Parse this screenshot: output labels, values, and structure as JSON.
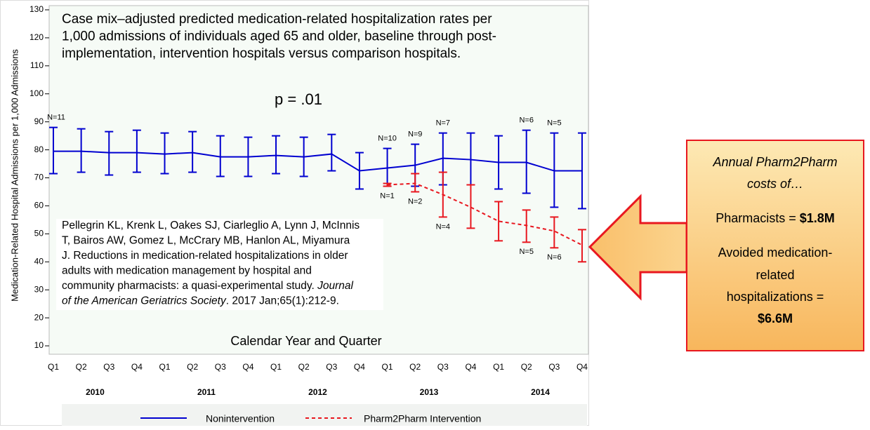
{
  "chart_data": {
    "type": "line",
    "title_lines": [
      "Case mix–adjusted predicted medication-related hospitalization rates per",
      "1,000 admissions of individuals aged 65 and older, baseline through post-",
      "implementation, intervention hospitals versus comparison hospitals."
    ],
    "annotation": "p = .01",
    "citation_lines": [
      [
        {
          "text": "Pellegrin KL, Krenk L, Oakes SJ, Ciarleglio A, Lynn J, McInnis"
        }
      ],
      [
        {
          "text": "T, Bairos AW, Gomez L, McCrary MB, Hanlon AL, Miyamura"
        }
      ],
      [
        {
          "text": "J. Reductions in medication-related hospitalizations in older"
        }
      ],
      [
        {
          "text": "adults with medication management by hospital and"
        }
      ],
      [
        {
          "text": "community pharmacists: a quasi-experimental study. "
        },
        {
          "text": "Journal",
          "italic": true
        }
      ],
      [
        {
          "text": "of the American Geriatrics Society",
          "italic": true
        },
        {
          "text": ". 2017 Jan;65(1):212-9."
        }
      ]
    ],
    "x_label": "Calendar Year and Quarter",
    "y_label": "Medication-Related Hospital Admissions per 1,000 Admissions",
    "categories": [
      "Q1",
      "Q2",
      "Q3",
      "Q4",
      "Q1",
      "Q2",
      "Q3",
      "Q4",
      "Q1",
      "Q2",
      "Q3",
      "Q4",
      "Q1",
      "Q2",
      "Q3",
      "Q4",
      "Q1",
      "Q2",
      "Q3",
      "Q4"
    ],
    "x_groups": [
      "2010",
      "2011",
      "2012",
      "2013",
      "2014"
    ],
    "ylim": [
      7,
      131
    ],
    "yticks": [
      10,
      20,
      30,
      40,
      50,
      60,
      70,
      80,
      90,
      100,
      110,
      120,
      130
    ],
    "series": [
      {
        "name": "Nonintervention",
        "color": "#0000d0",
        "dash": false,
        "values": [
          79.5,
          79.5,
          79,
          79,
          78.5,
          79,
          77.5,
          77.5,
          78,
          77.5,
          78.5,
          72.5,
          73.5,
          74.5,
          77,
          76.5,
          75.5,
          75.5,
          72.5,
          72.5
        ],
        "lower": [
          71.5,
          72,
          71,
          72,
          71.5,
          72,
          70.5,
          70.5,
          71.5,
          70.5,
          72.5,
          66,
          67,
          67,
          67.5,
          67.5,
          66,
          64.5,
          59.5,
          59
        ],
        "upper": [
          88,
          87.5,
          86.5,
          87,
          86,
          86.5,
          85,
          84.5,
          85,
          84.5,
          85.5,
          79,
          80.5,
          82,
          86,
          86,
          85,
          87,
          86,
          86
        ],
        "n_labels": [
          "N=11",
          null,
          null,
          null,
          null,
          null,
          null,
          null,
          null,
          null,
          null,
          null,
          "N=10",
          "N=9",
          "N=7",
          null,
          null,
          "N=6",
          "N=5",
          null
        ]
      },
      {
        "name": "Pharm2Pharm Intervention",
        "color": "#e8171f",
        "dash": true,
        "values": [
          null,
          null,
          null,
          null,
          null,
          null,
          null,
          null,
          null,
          null,
          null,
          null,
          67.5,
          68,
          64,
          59.5,
          54.5,
          53,
          51,
          46
        ],
        "lower": [
          null,
          null,
          null,
          null,
          null,
          null,
          null,
          null,
          null,
          null,
          null,
          null,
          67,
          65,
          56,
          52,
          47.5,
          47,
          45,
          40
        ],
        "upper": [
          null,
          null,
          null,
          null,
          null,
          null,
          null,
          null,
          null,
          null,
          null,
          null,
          68,
          71.5,
          72,
          67.5,
          61.5,
          58.5,
          56,
          51.5
        ],
        "n_labels": [
          null,
          null,
          null,
          null,
          null,
          null,
          null,
          null,
          null,
          null,
          null,
          null,
          "N=1",
          "N=2",
          "N=4",
          null,
          null,
          "N=5",
          "N=6",
          null
        ]
      }
    ]
  },
  "callout": {
    "heading": [
      "Annual Pharm2Pharm",
      "costs of…"
    ],
    "pharmacists_label": "Pharmacists = ",
    "pharmacists_value": "$1.8M",
    "avoided_lines": [
      "Avoided medication-",
      "related",
      "hospitalizations ="
    ],
    "avoided_value": "$6.6M"
  }
}
